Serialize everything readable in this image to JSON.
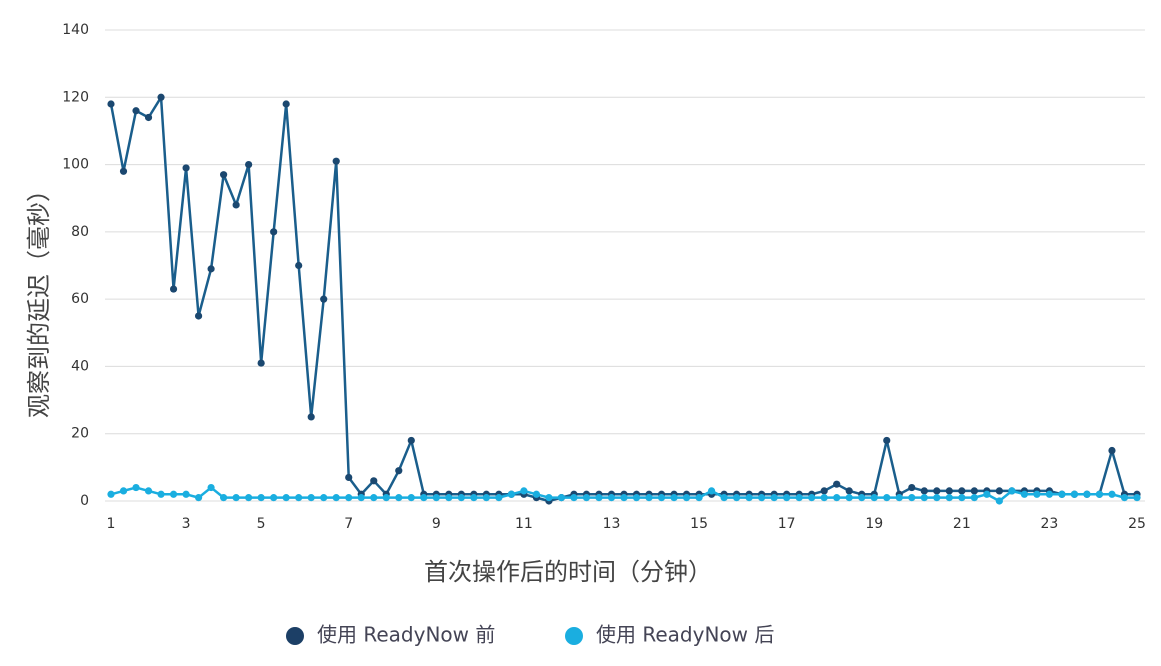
{
  "chart_data": {
    "type": "line",
    "x_label": "首次操作后的时间（分钟）",
    "y_label": "观察到的延迟（毫秒）",
    "categories": [
      "1",
      null,
      null,
      null,
      null,
      null,
      "3",
      null,
      null,
      null,
      null,
      null,
      "5",
      null,
      null,
      null,
      null,
      null,
      null,
      "7",
      null,
      null,
      null,
      null,
      null,
      null,
      "9",
      null,
      null,
      null,
      null,
      null,
      null,
      "11",
      null,
      null,
      null,
      null,
      null,
      null,
      "13",
      null,
      null,
      null,
      null,
      null,
      null,
      "15",
      null,
      null,
      null,
      null,
      null,
      null,
      "17",
      null,
      null,
      null,
      null,
      null,
      null,
      "19",
      null,
      null,
      null,
      null,
      null,
      null,
      "21",
      null,
      null,
      null,
      null,
      null,
      null,
      "23",
      null,
      null,
      null,
      null,
      null,
      null,
      "25"
    ],
    "series": [
      {
        "name": "使用 ReadyNow 前",
        "color": "#1a5e8c",
        "marker_color": "#1b4870",
        "values": [
          118,
          98,
          116,
          114,
          120,
          63,
          99,
          55,
          69,
          97,
          88,
          100,
          41,
          80,
          118,
          70,
          25,
          60,
          101,
          7,
          2,
          6,
          2,
          9,
          18,
          2,
          2,
          2,
          2,
          2,
          2,
          2,
          2,
          2,
          1,
          0,
          1,
          2,
          2,
          2,
          2,
          2,
          2,
          2,
          2,
          2,
          2,
          2,
          2,
          2,
          2,
          2,
          2,
          2,
          2,
          2,
          2,
          3,
          5,
          3,
          2,
          2,
          18,
          2,
          4,
          3,
          3,
          3,
          3,
          3,
          3,
          3,
          3,
          3,
          3,
          3,
          2,
          2,
          2,
          2,
          15,
          2,
          2
        ]
      },
      {
        "name": "使用 ReadyNow 后",
        "color": "#1aaee0",
        "marker_color": "#1aaee0",
        "values": [
          2,
          3,
          4,
          3,
          2,
          2,
          2,
          1,
          4,
          1,
          1,
          1,
          1,
          1,
          1,
          1,
          1,
          1,
          1,
          1,
          1,
          1,
          1,
          1,
          1,
          1,
          1,
          1,
          1,
          1,
          1,
          1,
          2,
          3,
          2,
          1,
          1,
          1,
          1,
          1,
          1,
          1,
          1,
          1,
          1,
          1,
          1,
          1,
          3,
          1,
          1,
          1,
          1,
          1,
          1,
          1,
          1,
          1,
          1,
          1,
          1,
          1,
          1,
          1,
          1,
          1,
          1,
          1,
          1,
          1,
          2,
          0,
          3,
          2,
          2,
          2,
          2,
          2,
          2,
          2,
          2,
          1,
          1
        ]
      }
    ],
    "ylim": [
      0,
      140
    ],
    "yticks": [
      0,
      20,
      40,
      60,
      80,
      100,
      120,
      140
    ],
    "grid": true,
    "legend": "bottom"
  }
}
